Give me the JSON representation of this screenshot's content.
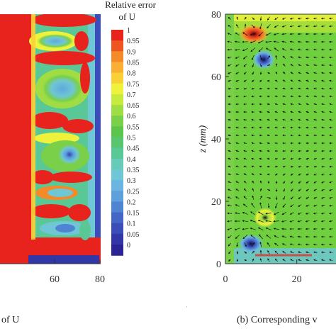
{
  "chart_data": [
    {
      "type": "heatmap",
      "panel": "left",
      "title": "Relative error of U",
      "title_lines": [
        "Relative error",
        "of U"
      ],
      "caption_fragment": "of U",
      "x_ticks": [
        60,
        80
      ],
      "x_visible_range": [
        36,
        80
      ],
      "colorbar": {
        "min": 0,
        "max": 1,
        "step": 0.05,
        "labels": [
          "1",
          "0.95",
          "0.9",
          "0.85",
          "0.8",
          "0.75",
          "0.7",
          "0.65",
          "0.6",
          "0.55",
          "0.5",
          "0.45",
          "0.4",
          "0.35",
          "0.3",
          "0.25",
          "0.2",
          "0.15",
          "0.1",
          "0.05",
          "0"
        ],
        "colors": [
          "#e8221c",
          "#ef5521",
          "#f58a29",
          "#faae32",
          "#f9d137",
          "#eef23b",
          "#c7ea3f",
          "#a0dd44",
          "#7ad048",
          "#5bc54c",
          "#57c66f",
          "#5ac896",
          "#66ccb9",
          "#6fc6d4",
          "#6ab6e1",
          "#5e9fdc",
          "#4f84d3",
          "#4467c7",
          "#3a4db9",
          "#3237a7",
          "#2b2494"
        ]
      }
    },
    {
      "type": "vector_field",
      "panel": "right",
      "caption_fragment": "(b) Corresponding v",
      "ylabel": "z (mm)",
      "y_ticks": [
        0,
        20,
        40,
        60,
        80
      ],
      "x_ticks": [
        0,
        20
      ],
      "xlim": [
        0,
        31
      ],
      "ylim": [
        0,
        80
      ],
      "vortices": [
        {
          "x": 7.5,
          "y": 74.5,
          "sign": "positive"
        },
        {
          "x": 11,
          "y": 68,
          "sign": "negative"
        },
        {
          "x": 11.5,
          "y": 18,
          "sign": "positive"
        },
        {
          "x": 7,
          "y": 8,
          "sign": "negative"
        }
      ]
    }
  ]
}
